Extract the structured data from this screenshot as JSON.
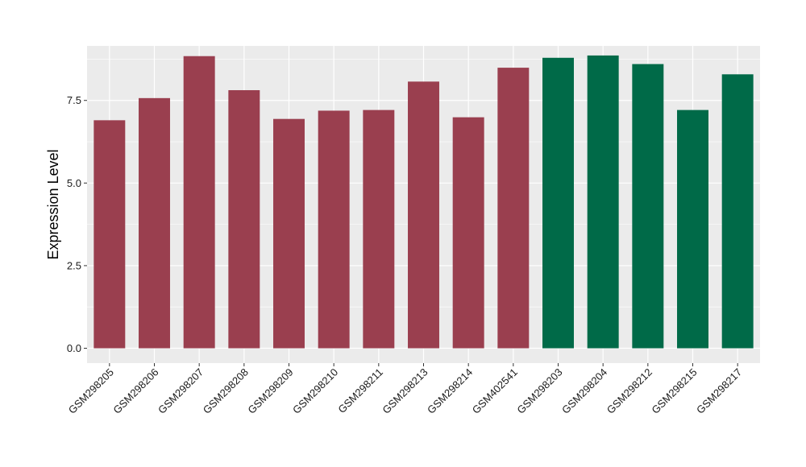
{
  "chart_data": {
    "type": "bar",
    "xlabel": "",
    "ylabel": "Expression Level",
    "ylim": [
      -0.45,
      9.15
    ],
    "yticks": [
      0.0,
      2.5,
      5.0,
      7.5
    ],
    "ytick_labels": [
      "0.0",
      "2.5",
      "5.0",
      "7.5"
    ],
    "grid": true,
    "legend": "none",
    "categories": [
      "GSM298205",
      "GSM298206",
      "GSM298207",
      "GSM298208",
      "GSM298209",
      "GSM298210",
      "GSM298211",
      "GSM298213",
      "GSM298214",
      "GSM402541",
      "GSM298203",
      "GSM298204",
      "GSM298212",
      "GSM298215",
      "GSM298217"
    ],
    "values": [
      6.9,
      7.57,
      8.84,
      7.81,
      6.94,
      7.19,
      7.21,
      8.07,
      6.99,
      8.49,
      8.79,
      8.86,
      8.6,
      7.21,
      8.29
    ],
    "bar_colors": [
      "#9a3f4f",
      "#9a3f4f",
      "#9a3f4f",
      "#9a3f4f",
      "#9a3f4f",
      "#9a3f4f",
      "#9a3f4f",
      "#9a3f4f",
      "#9a3f4f",
      "#9a3f4f",
      "#006a48",
      "#006a48",
      "#006a48",
      "#006a48",
      "#006a48"
    ],
    "panel_background": "#ebebeb",
    "grid_color": "#ffffff"
  }
}
